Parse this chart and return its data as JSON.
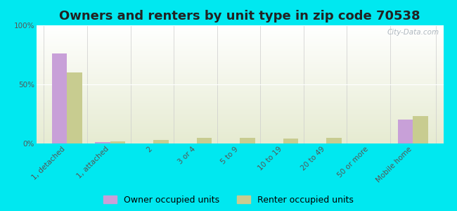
{
  "title": "Owners and renters by unit type in zip code 70538",
  "categories": [
    "1, detached",
    "1, attached",
    "2",
    "3 or 4",
    "5 to 9",
    "10 to 19",
    "20 to 49",
    "50 or more",
    "Mobile home"
  ],
  "owner_values": [
    76,
    1,
    0,
    0,
    0,
    0,
    0,
    0,
    20
  ],
  "renter_values": [
    60,
    2,
    3,
    5,
    5,
    4,
    5,
    0,
    23
  ],
  "owner_color": "#c8a0d8",
  "renter_color": "#c8cc90",
  "outer_background": "#00e8f0",
  "ylim": [
    0,
    100
  ],
  "yticks": [
    0,
    50,
    100
  ],
  "ytick_labels": [
    "0%",
    "50%",
    "100%"
  ],
  "bar_width": 0.35,
  "legend_owner": "Owner occupied units",
  "legend_renter": "Renter occupied units",
  "title_fontsize": 13,
  "tick_fontsize": 7.5,
  "legend_fontsize": 9,
  "watermark": "City-Data.com"
}
